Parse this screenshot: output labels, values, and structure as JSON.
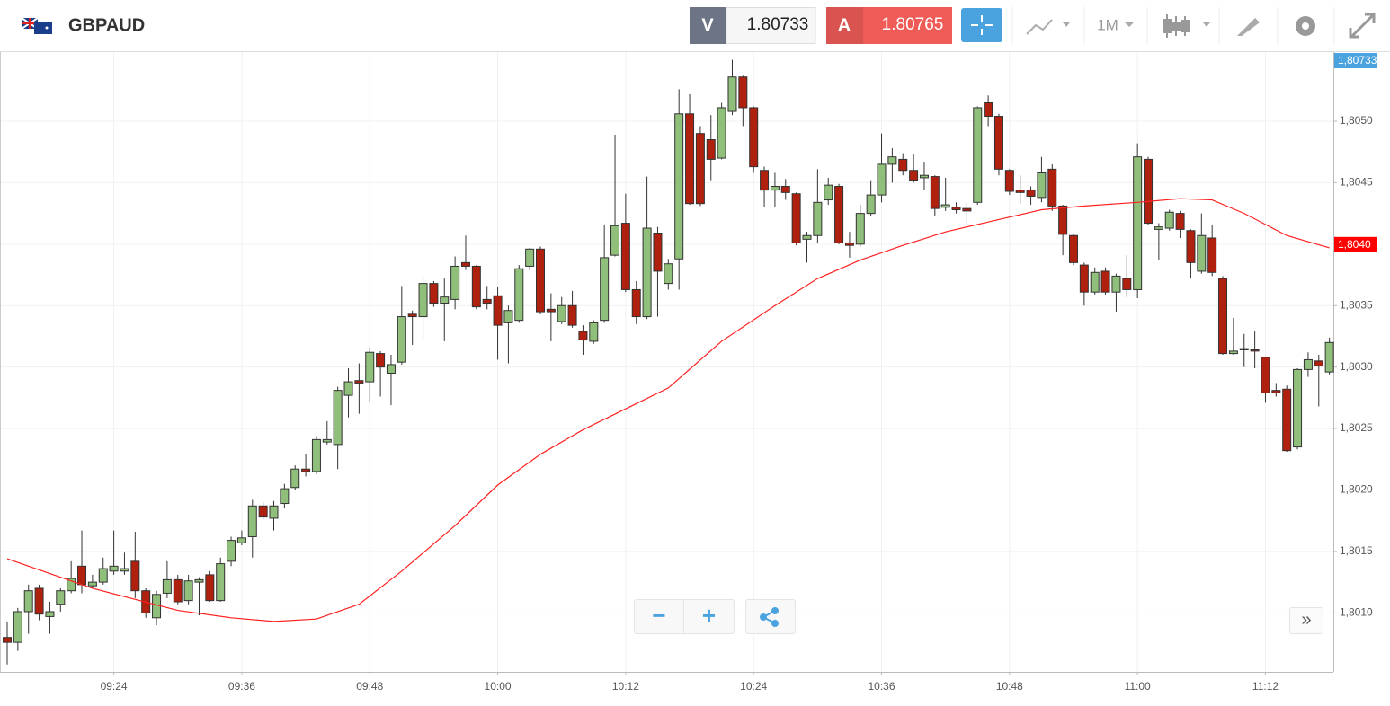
{
  "header": {
    "symbol": "GBPAUD",
    "bid_label": "V",
    "bid": "1.80733",
    "ask_label": "A",
    "ask": "1.80765",
    "timeframe": "1M"
  },
  "chart_data": {
    "type": "candlestick",
    "x": [
      "09:14",
      "09:15",
      "09:16",
      "09:17",
      "09:18",
      "09:19",
      "09:20",
      "09:21",
      "09:22",
      "09:23",
      "09:24",
      "09:25",
      "09:26",
      "09:27",
      "09:28",
      "09:29",
      "09:30",
      "09:31",
      "09:32",
      "09:33",
      "09:34",
      "09:35",
      "09:36",
      "09:37",
      "09:38",
      "09:39",
      "09:40",
      "09:41",
      "09:42",
      "09:43",
      "09:44",
      "09:45",
      "09:46",
      "09:47",
      "09:48",
      "09:49",
      "09:50",
      "09:51",
      "09:52",
      "09:53",
      "09:54",
      "09:55",
      "09:56",
      "09:57",
      "09:58",
      "09:59",
      "10:00",
      "10:01",
      "10:02",
      "10:03",
      "10:04",
      "10:05",
      "10:06",
      "10:07",
      "10:08",
      "10:09",
      "10:10",
      "10:11",
      "10:12",
      "10:13",
      "10:14",
      "10:15",
      "10:16",
      "10:17",
      "10:18",
      "10:19",
      "10:20",
      "10:21",
      "10:22",
      "10:23",
      "10:24",
      "10:25",
      "10:26",
      "10:27",
      "10:28",
      "10:29",
      "10:30",
      "10:31",
      "10:32",
      "10:33",
      "10:34",
      "10:35",
      "10:36",
      "10:37",
      "10:38",
      "10:39",
      "10:40",
      "10:41",
      "10:42",
      "10:43",
      "10:44",
      "10:45",
      "10:46",
      "10:47",
      "10:48",
      "10:49",
      "10:50",
      "10:51",
      "10:52",
      "10:53",
      "10:54",
      "10:55",
      "10:56",
      "10:57",
      "10:58",
      "10:59",
      "11:00",
      "11:01",
      "11:02",
      "11:03",
      "11:04",
      "11:05",
      "11:06",
      "11:07",
      "11:08",
      "11:09",
      "11:10",
      "11:11",
      "11:12",
      "11:13",
      "11:14",
      "11:15",
      "11:16",
      "11:17",
      "11:18"
    ],
    "open": [
      1.8008,
      1.80076,
      1.80101,
      1.8012,
      1.80097,
      1.80107,
      1.80118,
      1.80138,
      1.80122,
      1.80125,
      1.80134,
      1.80134,
      1.80142,
      1.80118,
      1.80096,
      1.80116,
      1.80127,
      1.8011,
      1.80125,
      1.80131,
      1.8011,
      1.80142,
      1.80157,
      1.80162,
      1.80187,
      1.80177,
      1.80189,
      1.80202,
      1.80217,
      1.80215,
      1.80239,
      1.80237,
      1.80277,
      1.80289,
      1.80288,
      1.80311,
      1.80295,
      1.80304,
      1.80343,
      1.80341,
      1.80368,
      1.80352,
      1.80355,
      1.80385,
      1.80382,
      1.80355,
      1.80358,
      1.80336,
      1.80338,
      1.80382,
      1.80396,
      1.80347,
      1.80337,
      1.8035,
      1.80329,
      1.80321,
      1.80338,
      1.80391,
      1.80417,
      1.80363,
      1.80341,
      1.80409,
      1.80368,
      1.80388,
      1.80506,
      1.8049,
      1.80485,
      1.8047,
      1.80508,
      1.80536,
      1.80511,
      1.8046,
      1.80444,
      1.80447,
      1.80441,
      1.80404,
      1.80407,
      1.80436,
      1.80447,
      1.80401,
      1.804,
      1.80425,
      1.8044,
      1.80465,
      1.80469,
      1.8046,
      1.80454,
      1.80455,
      1.8043,
      1.8043,
      1.80429,
      1.80434,
      1.80515,
      1.80504,
      1.8046,
      1.80444,
      1.80444,
      1.80438,
      1.80461,
      1.80431,
      1.80407,
      1.80383,
      1.80361,
      1.80378,
      1.80361,
      1.80372,
      1.80363,
      1.80469,
      1.80412,
      1.80413,
      1.80425,
      1.80411,
      1.80378,
      1.80405,
      1.80372,
      1.80311,
      1.80315,
      1.80314,
      1.80308,
      1.80281,
      1.80282,
      1.80235,
      1.80298,
      1.80305,
      1.80296
    ],
    "high": [
      1.80093,
      1.80104,
      1.80123,
      1.80123,
      1.80109,
      1.8012,
      1.80142,
      1.80167,
      1.80131,
      1.80145,
      1.80167,
      1.80149,
      1.80166,
      1.8012,
      1.80118,
      1.80142,
      1.80131,
      1.80131,
      1.80129,
      1.80134,
      1.80145,
      1.80162,
      1.80167,
      1.80192,
      1.8019,
      1.80191,
      1.80205,
      1.8022,
      1.80229,
      1.80244,
      1.80256,
      1.80284,
      1.80299,
      1.80303,
      1.80316,
      1.80313,
      1.8031,
      1.80366,
      1.80346,
      1.80374,
      1.8037,
      1.80372,
      1.8039,
      1.80407,
      1.80383,
      1.80366,
      1.80365,
      1.8035,
      1.80383,
      1.80397,
      1.80398,
      1.8036,
      1.80357,
      1.80362,
      1.80334,
      1.80338,
      1.80416,
      1.80489,
      1.80441,
      1.8037,
      1.80455,
      1.80414,
      1.80388,
      1.80526,
      1.80522,
      1.80496,
      1.80505,
      1.80515,
      1.8055,
      1.80537,
      1.80512,
      1.80463,
      1.80458,
      1.80453,
      1.80442,
      1.8041,
      1.80461,
      1.80454,
      1.80449,
      1.8041,
      1.80432,
      1.80452,
      1.8049,
      1.80478,
      1.80474,
      1.80473,
      1.80467,
      1.80456,
      1.80454,
      1.80434,
      1.80434,
      1.80512,
      1.80521,
      1.80506,
      1.80461,
      1.80456,
      1.80447,
      1.80471,
      1.80465,
      1.80432,
      1.80408,
      1.80385,
      1.80381,
      1.80381,
      1.80376,
      1.80391,
      1.80482,
      1.80471,
      1.80417,
      1.80428,
      1.80427,
      1.80412,
      1.80425,
      1.80416,
      1.80374,
      1.8034,
      1.80327,
      1.80329,
      1.80308,
      1.80287,
      1.80285,
      1.80299,
      1.80312,
      1.8031,
      1.80324
    ],
    "low": [
      1.80058,
      1.80069,
      1.80083,
      1.80094,
      1.80083,
      1.80101,
      1.80116,
      1.80116,
      1.8012,
      1.80123,
      1.80131,
      1.80131,
      1.80112,
      1.80096,
      1.8009,
      1.80112,
      1.80107,
      1.80107,
      1.80098,
      1.80109,
      1.80109,
      1.80138,
      1.80155,
      1.80145,
      1.80176,
      1.80167,
      1.80185,
      1.802,
      1.80211,
      1.80213,
      1.80237,
      1.80217,
      1.80259,
      1.80262,
      1.80272,
      1.80276,
      1.80269,
      1.80302,
      1.80318,
      1.80322,
      1.80349,
      1.80321,
      1.80347,
      1.80379,
      1.80347,
      1.80347,
      1.80306,
      1.80303,
      1.80336,
      1.80379,
      1.80343,
      1.80321,
      1.80335,
      1.80332,
      1.8031,
      1.80319,
      1.80336,
      1.8039,
      1.80361,
      1.80335,
      1.80339,
      1.80341,
      1.80363,
      1.80363,
      1.80432,
      1.80431,
      1.80452,
      1.80469,
      1.80505,
      1.80496,
      1.80458,
      1.8043,
      1.8043,
      1.80436,
      1.80399,
      1.80385,
      1.80401,
      1.80432,
      1.804,
      1.80389,
      1.80398,
      1.80423,
      1.80434,
      1.8045,
      1.80456,
      1.8045,
      1.80444,
      1.80423,
      1.80427,
      1.80425,
      1.80416,
      1.80432,
      1.80496,
      1.80456,
      1.8044,
      1.80433,
      1.80432,
      1.80434,
      1.80427,
      1.80391,
      1.80383,
      1.8035,
      1.80359,
      1.80359,
      1.80345,
      1.80357,
      1.80356,
      1.80416,
      1.80387,
      1.80411,
      1.80405,
      1.80372,
      1.80376,
      1.80374,
      1.8031,
      1.8031,
      1.803,
      1.80299,
      1.80271,
      1.80276,
      1.80231,
      1.80233,
      1.80292,
      1.80268,
      1.80294
    ],
    "close": [
      1.80076,
      1.80101,
      1.80118,
      1.80099,
      1.80101,
      1.80118,
      1.80128,
      1.80123,
      1.80125,
      1.80136,
      1.80138,
      1.80136,
      1.80118,
      1.801,
      1.80115,
      1.80127,
      1.80109,
      1.80126,
      1.80127,
      1.8011,
      1.8014,
      1.80159,
      1.80161,
      1.80187,
      1.80178,
      1.80187,
      1.80201,
      1.80217,
      1.80215,
      1.80241,
      1.80241,
      1.80281,
      1.80288,
      1.80287,
      1.80312,
      1.803,
      1.80302,
      1.80341,
      1.80341,
      1.80368,
      1.80352,
      1.80357,
      1.80382,
      1.80382,
      1.80349,
      1.80352,
      1.80334,
      1.80346,
      1.8038,
      1.80396,
      1.80345,
      1.80345,
      1.8035,
      1.80334,
      1.80322,
      1.80336,
      1.80389,
      1.80415,
      1.80363,
      1.80341,
      1.80413,
      1.80378,
      1.80384,
      1.80506,
      1.80433,
      1.80433,
      1.80469,
      1.80511,
      1.80536,
      1.80511,
      1.80463,
      1.80444,
      1.80447,
      1.80442,
      1.80401,
      1.80407,
      1.80434,
      1.80448,
      1.80401,
      1.80399,
      1.80425,
      1.8044,
      1.80465,
      1.80471,
      1.8046,
      1.80452,
      1.80456,
      1.80429,
      1.80432,
      1.80428,
      1.80427,
      1.80511,
      1.80504,
      1.80461,
      1.80443,
      1.80442,
      1.80439,
      1.80458,
      1.80431,
      1.80408,
      1.80385,
      1.80361,
      1.80377,
      1.80361,
      1.80374,
      1.80363,
      1.80471,
      1.80417,
      1.80414,
      1.80426,
      1.80412,
      1.80385,
      1.80407,
      1.80377,
      1.80311,
      1.80313,
      1.80314,
      1.80313,
      1.80279,
      1.80279,
      1.80232,
      1.80298,
      1.80306,
      1.80301,
      1.8032
    ],
    "up_color": "#8fbf7a",
    "down_color": "#b0200e",
    "overlay": {
      "type": "line",
      "color": "#ff2020",
      "x": [
        "09:14",
        "09:22",
        "09:30",
        "09:35",
        "09:39",
        "09:43",
        "09:47",
        "09:51",
        "09:56",
        "10:00",
        "10:04",
        "10:08",
        "10:12",
        "10:16",
        "10:21",
        "10:26",
        "10:30",
        "10:34",
        "10:38",
        "10:42",
        "10:47",
        "10:51",
        "10:55",
        "11:00",
        "11:04",
        "11:07",
        "11:10",
        "11:14",
        "11:18"
      ],
      "values": [
        1.80144,
        1.8012,
        1.80102,
        1.80096,
        1.80093,
        1.80095,
        1.80107,
        1.80134,
        1.80171,
        1.80204,
        1.80229,
        1.80249,
        1.80266,
        1.80283,
        1.80321,
        1.8035,
        1.80372,
        1.80387,
        1.80399,
        1.8041,
        1.8042,
        1.80428,
        1.80431,
        1.80434,
        1.80437,
        1.80436,
        1.80425,
        1.80407,
        1.80397
      ]
    },
    "ylim": [
      1.80052,
      1.80557
    ],
    "yticks": [
      {
        "value": 1.801,
        "label": "1,8010"
      },
      {
        "value": 1.8015,
        "label": "1,8015"
      },
      {
        "value": 1.802,
        "label": "1,8020"
      },
      {
        "value": 1.8025,
        "label": "1,8025"
      },
      {
        "value": 1.803,
        "label": "1,8030"
      },
      {
        "value": 1.8035,
        "label": "1,8035"
      },
      {
        "value": 1.804,
        "label": "1,8040"
      },
      {
        "value": 1.8045,
        "label": "1,8045"
      },
      {
        "value": 1.805,
        "label": "1,8050"
      }
    ],
    "xticks": [
      "09:24",
      "09:36",
      "09:48",
      "10:00",
      "10:12",
      "10:24",
      "10:36",
      "10:48",
      "11:00",
      "11:12"
    ],
    "grid": true,
    "price_labels": [
      {
        "value": 1.80733,
        "label": "1,80733",
        "color": "#4aa3df"
      },
      {
        "value": 1.804,
        "label": "1,8040",
        "color": "#ff0000"
      }
    ]
  }
}
